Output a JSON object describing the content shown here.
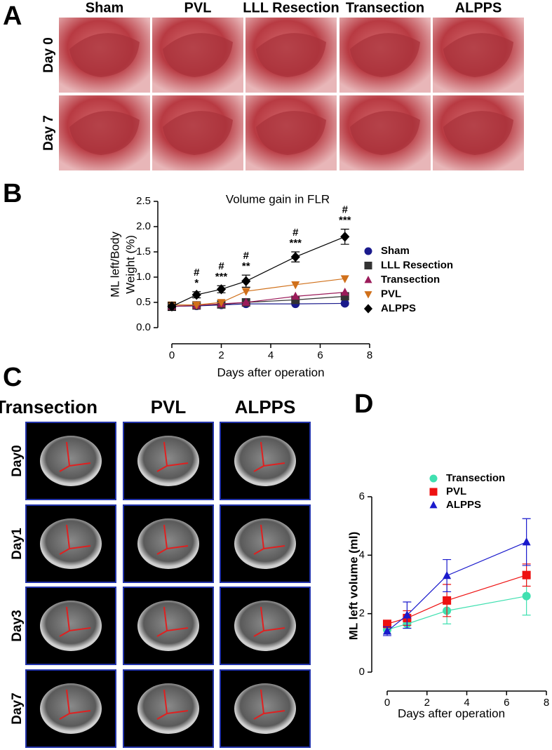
{
  "panel_labels": [
    "A",
    "B",
    "C",
    "D"
  ],
  "panel_a": {
    "columns": [
      "Sham",
      "PVL",
      "LLL Resection",
      "Transection",
      "ALPPS"
    ],
    "rows": [
      "Day 0",
      "Day 7"
    ]
  },
  "panel_c": {
    "columns": [
      "Transection",
      "PVL",
      "ALPPS"
    ],
    "rows": [
      "Day0",
      "Day1",
      "Day3",
      "Day7"
    ]
  },
  "chart_data": [
    {
      "type": "line",
      "title": "Volume gain in FLR",
      "xlabel": "Days after operation",
      "ylabel": [
        "ML left/Body",
        "Weight (%)"
      ],
      "x": [
        0,
        1,
        2,
        3,
        5,
        7
      ],
      "xlim": [
        0,
        8
      ],
      "xticks": [
        0,
        2,
        4,
        6,
        8
      ],
      "ylim": [
        0,
        2.5
      ],
      "yticks": [
        {
          "value": 0,
          "label": "0.0"
        },
        0.5,
        {
          "value": 1,
          "label": "1.0"
        },
        1.5,
        {
          "value": 2,
          "label": "2.0"
        },
        2.5
      ],
      "legend": "right",
      "series": [
        {
          "name": "Sham",
          "color": "#1a1a8c",
          "marker": "circle",
          "values": [
            0.42,
            0.43,
            0.45,
            0.47,
            0.47,
            0.48
          ]
        },
        {
          "name": "LLL Resection",
          "color": "#333333",
          "marker": "square",
          "values": [
            0.42,
            0.44,
            0.46,
            0.5,
            0.55,
            0.62
          ]
        },
        {
          "name": "Transection",
          "color": "#9b1b5a",
          "marker": "triangle",
          "values": [
            0.42,
            0.44,
            0.47,
            0.5,
            0.62,
            0.7
          ]
        },
        {
          "name": "PVL",
          "color": "#d0701a",
          "marker": "triangle-down",
          "values": [
            0.45,
            0.45,
            0.5,
            0.72,
            0.85,
            0.97
          ]
        },
        {
          "name": "ALPPS",
          "color": "#000000",
          "marker": "diamond",
          "values": [
            0.42,
            0.65,
            0.76,
            0.92,
            1.4,
            1.8
          ],
          "errors": [
            0.08,
            0.06,
            0.07,
            0.12,
            0.1,
            0.15
          ]
        }
      ],
      "annotations": [
        {
          "x": 1,
          "labels": [
            "#",
            "*"
          ]
        },
        {
          "x": 2,
          "labels": [
            "#",
            "***"
          ]
        },
        {
          "x": 3,
          "labels": [
            "#",
            "**"
          ]
        },
        {
          "x": 5,
          "labels": [
            "#",
            "***"
          ]
        },
        {
          "x": 7,
          "labels": [
            "#",
            "***"
          ]
        }
      ]
    },
    {
      "type": "line",
      "xlabel": "Days after operation",
      "ylabel": [
        "ML left  volume (ml)"
      ],
      "x": [
        0,
        1,
        3,
        7
      ],
      "xlim": [
        0,
        8
      ],
      "xticks": [
        0,
        2,
        4,
        6,
        8
      ],
      "ylim": [
        0,
        6
      ],
      "yticks": [
        0,
        2,
        4,
        6
      ],
      "legend": "top",
      "series": [
        {
          "name": "Transection",
          "color": "#40e0b0",
          "marker": "circle",
          "values": [
            1.45,
            1.65,
            2.1,
            2.6
          ],
          "errors": [
            0.15,
            0.15,
            0.45,
            0.65
          ]
        },
        {
          "name": "PVL",
          "color": "#ee1111",
          "marker": "square",
          "values": [
            1.65,
            1.85,
            2.45,
            3.32
          ],
          "errors": [
            0.1,
            0.25,
            0.55,
            0.38
          ]
        },
        {
          "name": "ALPPS",
          "color": "#1a1acc",
          "marker": "triangle",
          "values": [
            1.4,
            1.95,
            3.3,
            4.45
          ],
          "errors": [
            0.15,
            0.45,
            0.55,
            0.8
          ]
        }
      ]
    }
  ]
}
